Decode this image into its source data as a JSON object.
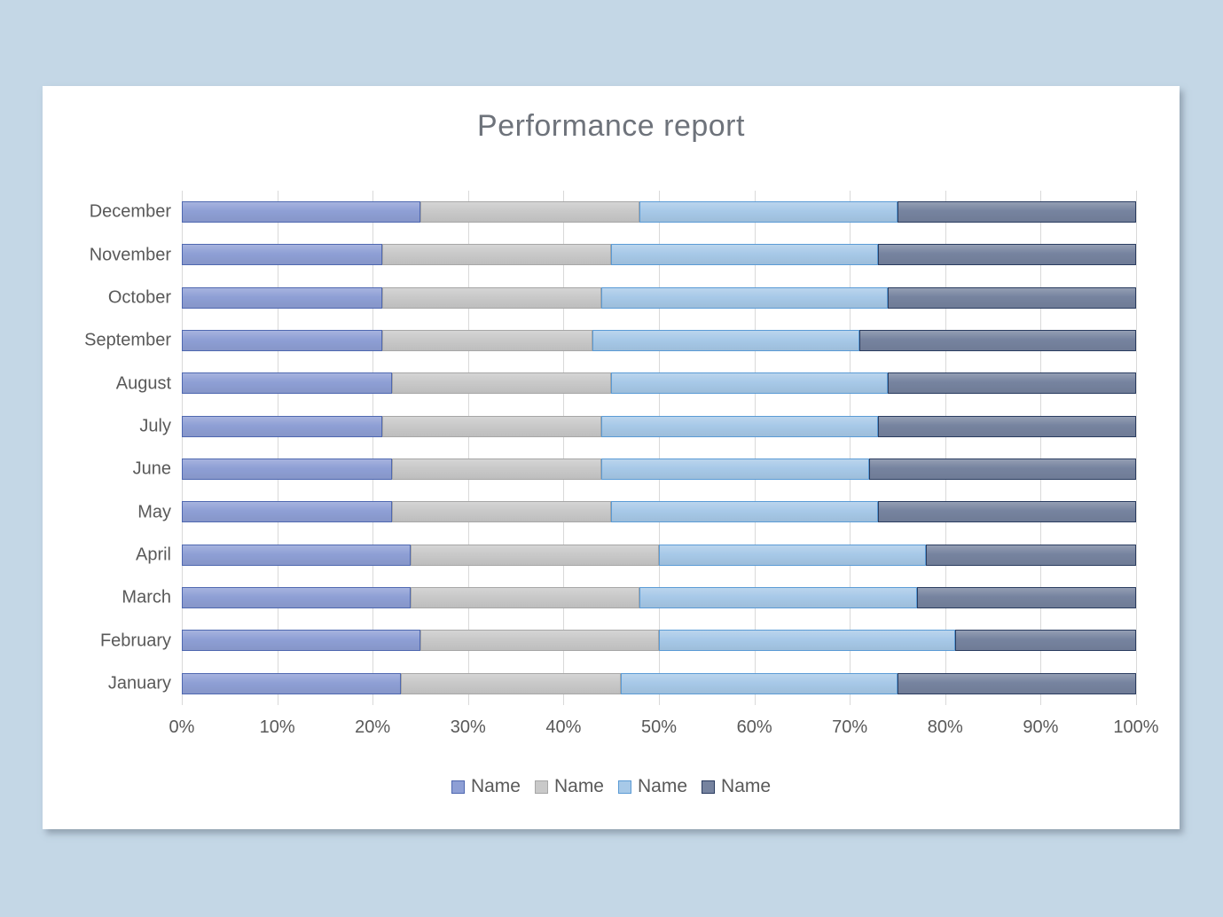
{
  "background": {
    "page": "#c4d7e6",
    "card": "#ffffff"
  },
  "axis": {
    "label_color": "#595959",
    "gridline_color": "#d9d9d9"
  },
  "chart_data": {
    "type": "bar",
    "orientation": "horizontal",
    "stacked": true,
    "title": "Performance report",
    "title_color": "#6e737b",
    "categories": [
      "December",
      "November",
      "October",
      "September",
      "August",
      "July",
      "June",
      "May",
      "April",
      "March",
      "February",
      "January"
    ],
    "x_ticks": [
      "0%",
      "10%",
      "20%",
      "30%",
      "40%",
      "50%",
      "60%",
      "70%",
      "80%",
      "90%",
      "100%"
    ],
    "xlim": [
      0,
      100
    ],
    "unit": "percent",
    "grid": true,
    "legend_position": "bottom",
    "series": [
      {
        "name": "Name",
        "fill": "#8e9fd5",
        "border": "#4f68b0",
        "values": [
          25,
          21,
          21,
          21,
          22,
          21,
          22,
          22,
          24,
          24,
          25,
          23
        ]
      },
      {
        "name": "Name",
        "fill": "#c9c9c9",
        "border": "#a6a6a6",
        "values": [
          23,
          24,
          23,
          22,
          23,
          23,
          22,
          23,
          26,
          24,
          25,
          23
        ]
      },
      {
        "name": "Name",
        "fill": "#a7c9e8",
        "border": "#5b9bd5",
        "values": [
          27,
          28,
          30,
          28,
          29,
          29,
          28,
          28,
          28,
          29,
          31,
          29
        ]
      },
      {
        "name": "Name",
        "fill": "#76839f",
        "border": "#2a3c60",
        "values": [
          25,
          27,
          26,
          29,
          26,
          27,
          28,
          27,
          22,
          23,
          19,
          25
        ]
      }
    ]
  }
}
